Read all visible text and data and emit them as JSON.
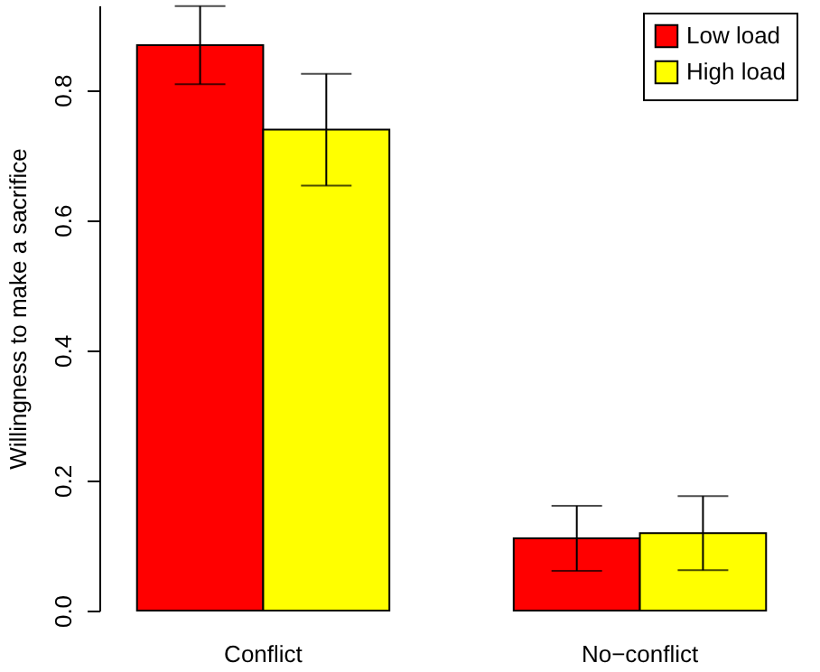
{
  "chart_data": {
    "type": "bar",
    "ylabel": "Willingness to make a sacrifice",
    "categories": [
      "Conflict",
      "No−conflict"
    ],
    "series": [
      {
        "name": "Low load",
        "color": "#ff0000",
        "values": [
          0.869,
          0.111
        ],
        "errors": [
          0.06,
          0.05
        ]
      },
      {
        "name": "High load",
        "color": "#ffff00",
        "values": [
          0.739,
          0.119
        ],
        "errors": [
          0.086,
          0.057
        ]
      }
    ],
    "ylim": [
      0,
      0.93
    ],
    "yticks": [
      {
        "value": 0,
        "label": "0.0"
      },
      {
        "value": 0.2,
        "label": "0.2"
      },
      {
        "value": 0.4,
        "label": "0.4"
      },
      {
        "value": 0.6,
        "label": "0.6"
      },
      {
        "value": 0.8,
        "label": "0.8"
      }
    ],
    "grid": false,
    "legend": "top right"
  }
}
